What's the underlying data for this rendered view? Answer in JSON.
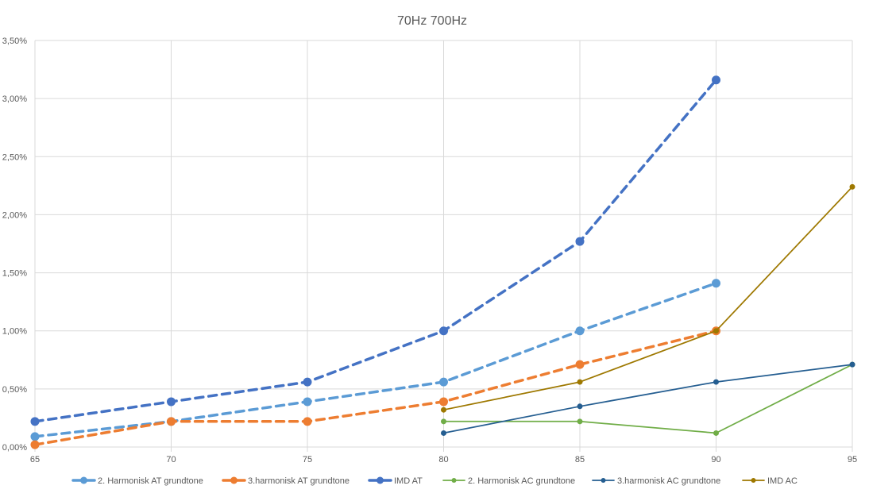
{
  "chart_data": {
    "type": "line",
    "title": "70Hz 700Hz",
    "xlabel": "",
    "ylabel": "",
    "x_ticks": [
      "65",
      "70",
      "75",
      "80",
      "85",
      "90",
      "95"
    ],
    "y_ticks": [
      "0,00%",
      "0,50%",
      "1,00%",
      "1,50%",
      "2,00%",
      "2,50%",
      "3,00%",
      "3,50%"
    ],
    "xlim": [
      65,
      95
    ],
    "ylim": [
      0,
      3.5
    ],
    "grid": true,
    "legend_position": "bottom",
    "series": [
      {
        "name": "2. Harmonisk AT grundtone",
        "color": "#5b9bd5",
        "style": "dashed",
        "marker": "large",
        "x": [
          65,
          70,
          75,
          80,
          85,
          90
        ],
        "values": [
          0.09,
          0.22,
          0.39,
          0.56,
          1.0,
          1.41
        ]
      },
      {
        "name": "3.harmonisk AT grundtone",
        "color": "#ed7d31",
        "style": "dashed",
        "marker": "large",
        "x": [
          65,
          70,
          75,
          80,
          85,
          90
        ],
        "values": [
          0.02,
          0.22,
          0.22,
          0.39,
          0.71,
          1.0
        ]
      },
      {
        "name": "IMD AT",
        "color": "#4472c4",
        "style": "dashed",
        "marker": "large",
        "x": [
          65,
          70,
          75,
          80,
          85,
          90
        ],
        "values": [
          0.22,
          0.39,
          0.56,
          1.0,
          1.77,
          3.16
        ]
      },
      {
        "name": "2. Harmonisk AC grundtone",
        "color": "#70ad47",
        "style": "solid",
        "marker": "small",
        "x": [
          80,
          85,
          90,
          95
        ],
        "values": [
          0.22,
          0.22,
          0.12,
          0.71
        ]
      },
      {
        "name": "3.harmonisk AC grundtone",
        "color": "#255e91",
        "style": "solid",
        "marker": "small",
        "x": [
          80,
          85,
          90,
          95
        ],
        "values": [
          0.12,
          0.35,
          0.56,
          0.71
        ]
      },
      {
        "name": "IMD AC",
        "color": "#9e7800",
        "style": "solid",
        "marker": "small",
        "x": [
          80,
          85,
          90,
          95
        ],
        "values": [
          0.32,
          0.56,
          1.0,
          2.24
        ]
      }
    ]
  }
}
